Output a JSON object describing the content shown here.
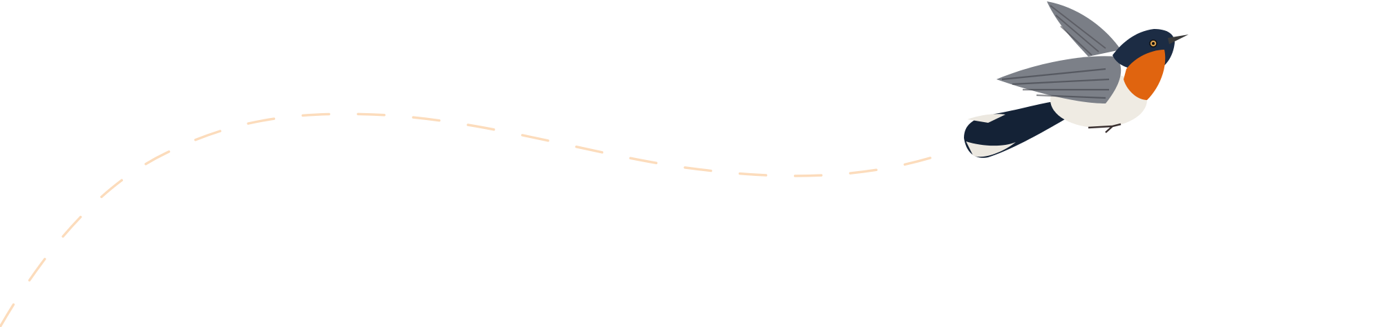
{
  "colors": {
    "background": "#ffffff",
    "flight_path": "#fcdcbc",
    "bird_throat": "#e0640f",
    "bird_head": "#1c2c44",
    "bird_wing": "#6e7480",
    "bird_belly": "#efebe3"
  },
  "icons": [
    "dashed-flight-path",
    "bird-illustration"
  ]
}
